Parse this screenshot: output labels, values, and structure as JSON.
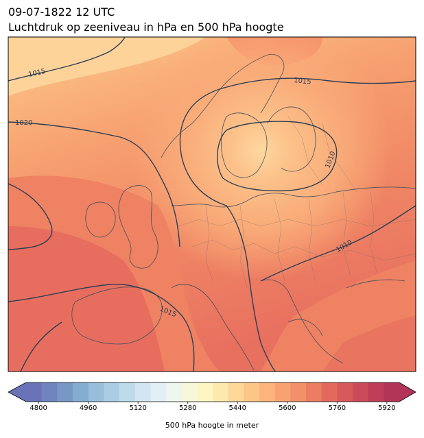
{
  "header": {
    "timestamp": "09-07-1822 12 UTC",
    "title": "Luchtdruk op zeeniveau in hPa en 500 hPa hoogte"
  },
  "map": {
    "isobar_labels": [
      "1015",
      "1015",
      "1020",
      "1010",
      "1010",
      "1015"
    ],
    "features": [
      "coastlines",
      "country-borders",
      "isobars",
      "filled-contours"
    ]
  },
  "colorbar": {
    "title": "500 hPa hoogte in meter",
    "ticks": [
      "4800",
      "4960",
      "5120",
      "5280",
      "5440",
      "5600",
      "5760",
      "5920"
    ],
    "range": [
      4760,
      5960
    ],
    "colors": [
      "#6a73b8",
      "#6f84bf",
      "#7897c7",
      "#86acd2",
      "#98bedb",
      "#abcde4",
      "#bedbea",
      "#d1e6f0",
      "#e2eff5",
      "#eef6ef",
      "#f7f8d9",
      "#fdf6c2",
      "#fde9ad",
      "#fdd899",
      "#fdc687",
      "#fbb47b",
      "#f8a271",
      "#f38f69",
      "#ec7c62",
      "#e3695d",
      "#d8595b",
      "#cc4b5a",
      "#bf3f59",
      "#b23458"
    ],
    "extend": "both"
  }
}
